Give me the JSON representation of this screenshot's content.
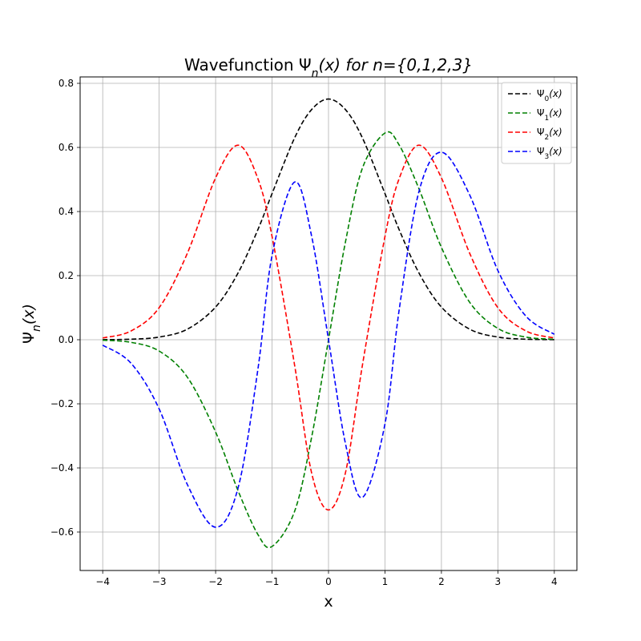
{
  "chart_data": {
    "type": "line",
    "title": "Wavefunction Ψ",
    "title_sub": "n",
    "title_rest": "(x) for n={0,1,2,3}",
    "xlabel": "x",
    "ylabel": "Ψ",
    "ylabel_sub": "n",
    "ylabel_rest": "(x)",
    "xlim": [
      -4.4,
      4.4
    ],
    "ylim": [
      -0.72,
      0.82
    ],
    "xticks": [
      -4,
      -3,
      -2,
      -1,
      0,
      1,
      2,
      3,
      4
    ],
    "xtick_labels": [
      "−4",
      "−3",
      "−2",
      "−1",
      "0",
      "1",
      "2",
      "3",
      "4"
    ],
    "yticks": [
      -0.6,
      -0.4,
      -0.2,
      0.0,
      0.2,
      0.4,
      0.6,
      0.8
    ],
    "ytick_labels": [
      "−0.6",
      "−0.4",
      "−0.2",
      "0.0",
      "0.2",
      "0.4",
      "0.6",
      "0.8"
    ],
    "grid": true,
    "legend_position": "top-right",
    "line_style": "dashed",
    "x": [
      -4.0,
      -3.5,
      -3.0,
      -2.5,
      -2.0,
      -1.6,
      -1.25,
      -1.0,
      -0.6,
      -0.3,
      0.0,
      0.3,
      0.6,
      1.0,
      1.25,
      1.6,
      2.0,
      2.5,
      3.0,
      3.5,
      4.0
    ],
    "series": [
      {
        "name": "Ψ",
        "sub": "0",
        "color": "#000000",
        "values": [
          0.000251,
          0.00164,
          0.00833,
          0.033,
          0.102,
          0.209,
          0.344,
          0.456,
          0.63,
          0.718,
          0.751,
          0.718,
          0.63,
          0.456,
          0.344,
          0.209,
          0.102,
          0.033,
          0.00833,
          0.00164,
          0.000251
        ]
      },
      {
        "name": "Ψ",
        "sub": "1",
        "color": "#008000",
        "values": [
          -0.00142,
          -0.00812,
          -0.0353,
          -0.117,
          -0.288,
          -0.472,
          -0.608,
          -0.645,
          -0.535,
          -0.305,
          0.0,
          0.305,
          0.535,
          0.645,
          0.608,
          0.472,
          0.288,
          0.117,
          0.0353,
          0.00812,
          0.00142
        ]
      },
      {
        "name": "Ψ",
        "sub": "2",
        "color": "#ff0000",
        "values": [
          0.0055,
          0.0272,
          0.1,
          0.27,
          0.505,
          0.607,
          0.502,
          0.322,
          -0.0802,
          -0.415,
          -0.531,
          -0.415,
          -0.0802,
          0.322,
          0.502,
          0.607,
          0.505,
          0.27,
          0.1,
          0.0272,
          0.0055
        ]
      },
      {
        "name": "Ψ",
        "sub": "3",
        "color": "#0000ff",
        "values": [
          -0.0171,
          -0.073,
          -0.216,
          -0.452,
          -0.585,
          -0.461,
          -0.0913,
          0.263,
          0.492,
          0.324,
          0.0,
          -0.324,
          -0.492,
          -0.263,
          0.0913,
          0.461,
          0.585,
          0.452,
          0.216,
          0.073,
          0.0171
        ]
      }
    ]
  }
}
